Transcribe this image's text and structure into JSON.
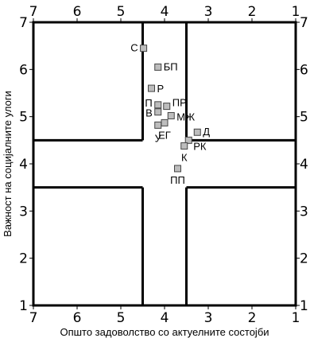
{
  "chart_data": {
    "type": "scatter",
    "title": "",
    "xlabel": "Општо задоволство со актуелните состојби",
    "ylabel": "Важност на социјалните улоги",
    "xlim": [
      7,
      1
    ],
    "ylim": [
      1,
      7
    ],
    "x_ticks": [
      "7",
      "6",
      "5",
      "4",
      "3",
      "2",
      "1"
    ],
    "y_ticks": [
      "1",
      "2",
      "3",
      "4",
      "5",
      "6",
      "7"
    ],
    "grid": false,
    "quadrant_divisions": {
      "x": [
        4.5,
        3.5
      ],
      "y": [
        4.5,
        3.5
      ]
    },
    "marker_color": "#bdbdbd",
    "points": [
      {
        "label": "С",
        "x": 4.48,
        "y": 6.45
      },
      {
        "label": "БП",
        "x": 4.15,
        "y": 6.05
      },
      {
        "label": "Р",
        "x": 4.3,
        "y": 5.6
      },
      {
        "label": "П",
        "x": 4.15,
        "y": 5.25
      },
      {
        "label": "ПР",
        "x": 3.95,
        "y": 5.22
      },
      {
        "label": "В",
        "x": 4.15,
        "y": 5.1
      },
      {
        "label": "МЖ",
        "x": 3.85,
        "y": 5.02
      },
      {
        "label": "ЕГ",
        "x": 4.0,
        "y": 4.87
      },
      {
        "label": "У",
        "x": 4.15,
        "y": 4.82
      },
      {
        "label": "Д",
        "x": 3.25,
        "y": 4.67
      },
      {
        "label": "РК",
        "x": 3.45,
        "y": 4.5
      },
      {
        "label": "К",
        "x": 3.55,
        "y": 4.38
      },
      {
        "label": "ПП",
        "x": 3.7,
        "y": 3.9
      }
    ]
  }
}
